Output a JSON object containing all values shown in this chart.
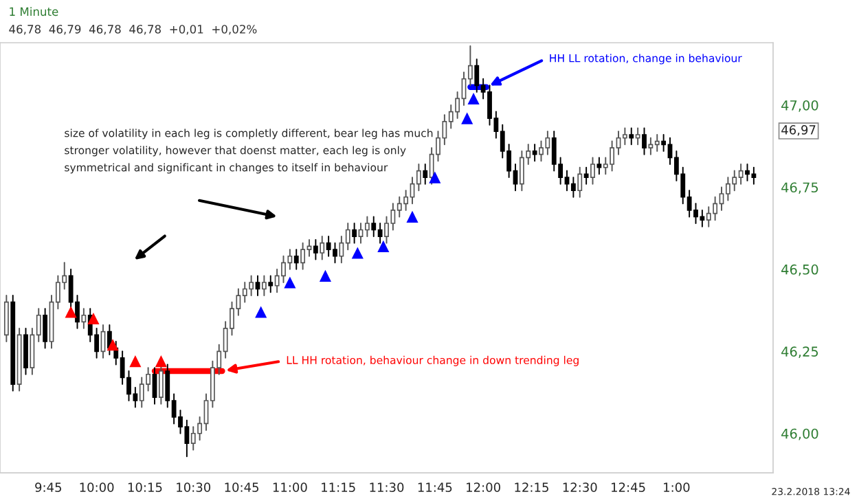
{
  "chart_data": {
    "type": "candlestick",
    "title": "1 Minute",
    "subtitle": "46,78  46,79  46,78  46,78  +0,01  +0,02%",
    "x": [
      "2018-02-23T09:32",
      "2018-02-23T09:34",
      "2018-02-23T09:36",
      "2018-02-23T09:38",
      "2018-02-23T09:40",
      "2018-02-23T09:42",
      "2018-02-23T09:44",
      "2018-02-23T09:46",
      "2018-02-23T09:48",
      "2018-02-23T09:50",
      "2018-02-23T09:52",
      "2018-02-23T09:54",
      "2018-02-23T09:56",
      "2018-02-23T09:58",
      "2018-02-23T10:00",
      "2018-02-23T10:02",
      "2018-02-23T10:04",
      "2018-02-23T10:06",
      "2018-02-23T10:08",
      "2018-02-23T10:10",
      "2018-02-23T10:12",
      "2018-02-23T10:14",
      "2018-02-23T10:16",
      "2018-02-23T10:18",
      "2018-02-23T10:20",
      "2018-02-23T10:22",
      "2018-02-23T10:24",
      "2018-02-23T10:26",
      "2018-02-23T10:28",
      "2018-02-23T10:30",
      "2018-02-23T10:32",
      "2018-02-23T10:34",
      "2018-02-23T10:36",
      "2018-02-23T10:38",
      "2018-02-23T10:40",
      "2018-02-23T10:42",
      "2018-02-23T10:44",
      "2018-02-23T10:46",
      "2018-02-23T10:48",
      "2018-02-23T10:50",
      "2018-02-23T10:52",
      "2018-02-23T10:54",
      "2018-02-23T10:56",
      "2018-02-23T10:58",
      "2018-02-23T11:00",
      "2018-02-23T11:02",
      "2018-02-23T11:04",
      "2018-02-23T11:06",
      "2018-02-23T11:08",
      "2018-02-23T11:10",
      "2018-02-23T11:12",
      "2018-02-23T11:14",
      "2018-02-23T11:16",
      "2018-02-23T11:18",
      "2018-02-23T11:20",
      "2018-02-23T11:22",
      "2018-02-23T11:24",
      "2018-02-23T11:26",
      "2018-02-23T11:28",
      "2018-02-23T11:30",
      "2018-02-23T11:32",
      "2018-02-23T11:34",
      "2018-02-23T11:36",
      "2018-02-23T11:38",
      "2018-02-23T11:40",
      "2018-02-23T11:42",
      "2018-02-23T11:44",
      "2018-02-23T11:46",
      "2018-02-23T11:48",
      "2018-02-23T11:50",
      "2018-02-23T11:52",
      "2018-02-23T11:54",
      "2018-02-23T11:56",
      "2018-02-23T11:58",
      "2018-02-23T12:00",
      "2018-02-23T12:02",
      "2018-02-23T12:04",
      "2018-02-23T12:06",
      "2018-02-23T12:08",
      "2018-02-23T12:10",
      "2018-02-23T12:12",
      "2018-02-23T12:14",
      "2018-02-23T12:16",
      "2018-02-23T12:18",
      "2018-02-23T12:20",
      "2018-02-23T12:22",
      "2018-02-23T12:24",
      "2018-02-23T12:26",
      "2018-02-23T12:28",
      "2018-02-23T12:30",
      "2018-02-23T12:32",
      "2018-02-23T12:34",
      "2018-02-23T12:36",
      "2018-02-23T12:38",
      "2018-02-23T12:40",
      "2018-02-23T12:42",
      "2018-02-23T12:44",
      "2018-02-23T12:46",
      "2018-02-23T12:48",
      "2018-02-23T12:50",
      "2018-02-23T12:52",
      "2018-02-23T12:54",
      "2018-02-23T12:56",
      "2018-02-23T12:58",
      "2018-02-23T13:00",
      "2018-02-23T13:02",
      "2018-02-23T13:04",
      "2018-02-23T13:06",
      "2018-02-23T13:08",
      "2018-02-23T13:10",
      "2018-02-23T13:12",
      "2018-02-23T13:14",
      "2018-02-23T13:16",
      "2018-02-23T13:18",
      "2018-02-23T13:20",
      "2018-02-23T13:22",
      "2018-02-23T13:24"
    ],
    "ohlc": [
      [
        46.3,
        46.42,
        46.28,
        46.4
      ],
      [
        46.4,
        46.42,
        46.13,
        46.15
      ],
      [
        46.15,
        46.32,
        46.13,
        46.3
      ],
      [
        46.3,
        46.32,
        46.18,
        46.2
      ],
      [
        46.2,
        46.32,
        46.18,
        46.3
      ],
      [
        46.3,
        46.38,
        46.28,
        46.36
      ],
      [
        46.36,
        46.38,
        46.26,
        46.28
      ],
      [
        46.28,
        46.42,
        46.26,
        46.4
      ],
      [
        46.4,
        46.48,
        46.38,
        46.46
      ],
      [
        46.46,
        46.52,
        46.44,
        46.48
      ],
      [
        46.48,
        46.5,
        46.38,
        46.4
      ],
      [
        46.4,
        46.42,
        46.32,
        46.34
      ],
      [
        46.34,
        46.38,
        46.32,
        46.36
      ],
      [
        46.36,
        46.38,
        46.28,
        46.3
      ],
      [
        46.3,
        46.32,
        46.23,
        46.25
      ],
      [
        46.25,
        46.33,
        46.23,
        46.31
      ],
      [
        46.31,
        46.33,
        46.24,
        46.26
      ],
      [
        46.26,
        46.28,
        46.21,
        46.23
      ],
      [
        46.23,
        46.25,
        46.15,
        46.17
      ],
      [
        46.17,
        46.19,
        46.1,
        46.12
      ],
      [
        46.12,
        46.14,
        46.08,
        46.1
      ],
      [
        46.1,
        46.17,
        46.08,
        46.15
      ],
      [
        46.15,
        46.2,
        46.13,
        46.18
      ],
      [
        46.18,
        46.2,
        46.09,
        46.11
      ],
      [
        46.11,
        46.21,
        46.09,
        46.19
      ],
      [
        46.19,
        46.21,
        46.08,
        46.1
      ],
      [
        46.1,
        46.12,
        46.03,
        46.05
      ],
      [
        46.05,
        46.07,
        46.0,
        46.02
      ],
      [
        46.02,
        46.04,
        45.93,
        45.97
      ],
      [
        45.97,
        46.02,
        45.95,
        46.0
      ],
      [
        46.0,
        46.05,
        45.98,
        46.03
      ],
      [
        46.03,
        46.12,
        46.01,
        46.1
      ],
      [
        46.1,
        46.22,
        46.08,
        46.2
      ],
      [
        46.2,
        46.27,
        46.18,
        46.25
      ],
      [
        46.25,
        46.34,
        46.23,
        46.32
      ],
      [
        46.32,
        46.4,
        46.3,
        46.38
      ],
      [
        46.38,
        46.44,
        46.36,
        46.42
      ],
      [
        46.42,
        46.46,
        46.4,
        46.44
      ],
      [
        46.44,
        46.48,
        46.42,
        46.46
      ],
      [
        46.46,
        46.48,
        46.42,
        46.44
      ],
      [
        46.44,
        46.48,
        46.42,
        46.46
      ],
      [
        46.46,
        46.48,
        46.43,
        46.45
      ],
      [
        46.45,
        46.5,
        46.43,
        46.48
      ],
      [
        46.48,
        46.54,
        46.46,
        46.52
      ],
      [
        46.52,
        46.56,
        46.5,
        46.54
      ],
      [
        46.54,
        46.56,
        46.5,
        46.52
      ],
      [
        46.52,
        46.58,
        46.5,
        46.56
      ],
      [
        46.56,
        46.59,
        46.54,
        46.57
      ],
      [
        46.57,
        46.59,
        46.53,
        46.55
      ],
      [
        46.55,
        46.6,
        46.53,
        46.58
      ],
      [
        46.58,
        46.6,
        46.54,
        46.56
      ],
      [
        46.56,
        46.58,
        46.52,
        46.54
      ],
      [
        46.54,
        46.6,
        46.52,
        46.58
      ],
      [
        46.58,
        46.64,
        46.56,
        46.62
      ],
      [
        46.62,
        46.64,
        46.58,
        46.6
      ],
      [
        46.6,
        46.64,
        46.58,
        46.62
      ],
      [
        46.62,
        46.66,
        46.6,
        46.64
      ],
      [
        46.64,
        46.66,
        46.6,
        46.62
      ],
      [
        46.62,
        46.64,
        46.58,
        46.6
      ],
      [
        46.6,
        46.66,
        46.58,
        46.64
      ],
      [
        46.64,
        46.7,
        46.62,
        46.68
      ],
      [
        46.68,
        46.72,
        46.66,
        46.7
      ],
      [
        46.7,
        46.74,
        46.68,
        46.72
      ],
      [
        46.72,
        46.78,
        46.7,
        46.76
      ],
      [
        46.76,
        46.82,
        46.74,
        46.8
      ],
      [
        46.8,
        46.82,
        46.76,
        46.78
      ],
      [
        46.78,
        46.87,
        46.76,
        46.85
      ],
      [
        46.85,
        46.92,
        46.83,
        46.9
      ],
      [
        46.9,
        46.97,
        46.88,
        46.95
      ],
      [
        46.95,
        47.0,
        46.93,
        46.98
      ],
      [
        46.98,
        47.04,
        46.96,
        47.02
      ],
      [
        47.02,
        47.1,
        47.0,
        47.08
      ],
      [
        47.08,
        47.18,
        47.06,
        47.12
      ],
      [
        47.12,
        47.14,
        47.04,
        47.06
      ],
      [
        47.06,
        47.08,
        47.02,
        47.04
      ],
      [
        47.04,
        47.06,
        46.94,
        46.96
      ],
      [
        46.96,
        46.98,
        46.9,
        46.92
      ],
      [
        46.92,
        46.94,
        46.84,
        46.86
      ],
      [
        46.86,
        46.88,
        46.78,
        46.8
      ],
      [
        46.8,
        46.82,
        46.74,
        46.76
      ],
      [
        46.76,
        46.86,
        46.74,
        46.84
      ],
      [
        46.84,
        46.88,
        46.82,
        46.86
      ],
      [
        46.86,
        46.88,
        46.83,
        46.85
      ],
      [
        46.85,
        46.89,
        46.83,
        46.87
      ],
      [
        46.87,
        46.92,
        46.85,
        46.9
      ],
      [
        46.9,
        46.92,
        46.8,
        46.82
      ],
      [
        46.82,
        46.84,
        46.76,
        46.78
      ],
      [
        46.78,
        46.8,
        46.74,
        46.76
      ],
      [
        46.76,
        46.78,
        46.72,
        46.74
      ],
      [
        46.74,
        46.81,
        46.72,
        46.79
      ],
      [
        46.79,
        46.81,
        46.76,
        46.78
      ],
      [
        46.78,
        46.84,
        46.76,
        46.82
      ],
      [
        46.82,
        46.84,
        46.79,
        46.81
      ],
      [
        46.81,
        46.84,
        46.79,
        46.82
      ],
      [
        46.82,
        46.89,
        46.8,
        46.87
      ],
      [
        46.87,
        46.92,
        46.85,
        46.9
      ],
      [
        46.9,
        46.93,
        46.88,
        46.91
      ],
      [
        46.91,
        46.93,
        46.88,
        46.9
      ],
      [
        46.9,
        46.93,
        46.88,
        46.91
      ],
      [
        46.91,
        46.93,
        46.85,
        46.87
      ],
      [
        46.87,
        46.9,
        46.85,
        46.88
      ],
      [
        46.88,
        46.91,
        46.86,
        46.89
      ],
      [
        46.89,
        46.91,
        46.86,
        46.88
      ],
      [
        46.88,
        46.9,
        46.82,
        46.84
      ],
      [
        46.84,
        46.86,
        46.77,
        46.79
      ],
      [
        46.79,
        46.81,
        46.7,
        46.72
      ],
      [
        46.72,
        46.74,
        46.66,
        46.68
      ],
      [
        46.68,
        46.7,
        46.64,
        46.66
      ],
      [
        46.66,
        46.68,
        46.63,
        46.65
      ],
      [
        46.65,
        46.69,
        46.63,
        46.67
      ],
      [
        46.67,
        46.72,
        46.65,
        46.7
      ],
      [
        46.7,
        46.75,
        46.68,
        46.73
      ],
      [
        46.73,
        46.78,
        46.71,
        46.76
      ],
      [
        46.76,
        46.8,
        46.74,
        46.78
      ],
      [
        46.78,
        46.82,
        46.76,
        46.8
      ],
      [
        46.8,
        46.82,
        46.77,
        46.79
      ],
      [
        46.79,
        46.81,
        46.76,
        46.78
      ]
    ],
    "series": [
      {
        "type": "scatter",
        "color": "#ff0000",
        "marker": "triangle",
        "x": [
          "2018-02-23T09:52",
          "2018-02-23T09:59",
          "2018-02-23T10:05",
          "2018-02-23T10:12",
          "2018-02-23T10:20"
        ],
        "values": [
          46.37,
          46.35,
          46.27,
          46.22,
          46.22
        ]
      },
      {
        "type": "scatter",
        "color": "#0000ff",
        "marker": "triangle",
        "x": [
          "2018-02-23T10:51",
          "2018-02-23T11:00",
          "2018-02-23T11:11",
          "2018-02-23T11:21",
          "2018-02-23T11:29",
          "2018-02-23T11:38",
          "2018-02-23T11:45",
          "2018-02-23T11:55",
          "2018-02-23T11:57"
        ],
        "values": [
          46.37,
          46.46,
          46.48,
          46.55,
          46.57,
          46.66,
          46.78,
          46.96,
          47.02
        ]
      },
      {
        "type": "line",
        "color": "#ff0000",
        "x": [
          "2018-02-23T10:18",
          "2018-02-23T10:39"
        ],
        "values": [
          46.19,
          46.19
        ]
      },
      {
        "type": "line",
        "color": "#0000ff",
        "x": [
          "2018-02-23T11:56",
          "2018-02-23T12:01"
        ],
        "values": [
          47.055,
          47.055
        ]
      }
    ],
    "annotations": [
      "size of volatility in each leg is completly different, bear leg has much",
      "stronger volatility, however that doenst matter, each leg is only",
      "symmetrical and significant in changes to itself in behaviour",
      "LL HH rotation, behaviour change in down trending leg",
      "HH LL rotation, change in behaviour",
      "46,97",
      "23.2.2018 13:24"
    ],
    "xlim": [
      "2018-02-23T09:30",
      "2018-02-23T13:30"
    ],
    "xticks": [
      {
        "value": "2018-02-23T09:45",
        "label": "9:45"
      },
      {
        "value": "2018-02-23T10:00",
        "label": "10:00"
      },
      {
        "value": "2018-02-23T10:15",
        "label": "10:15"
      },
      {
        "value": "2018-02-23T10:30",
        "label": "10:30"
      },
      {
        "value": "2018-02-23T10:45",
        "label": "10:45"
      },
      {
        "value": "2018-02-23T11:00",
        "label": "11:00"
      },
      {
        "value": "2018-02-23T11:15",
        "label": "11:15"
      },
      {
        "value": "2018-02-23T11:30",
        "label": "11:30"
      },
      {
        "value": "2018-02-23T11:45",
        "label": "11:45"
      },
      {
        "value": "2018-02-23T12:00",
        "label": "12:00"
      },
      {
        "value": "2018-02-23T12:15",
        "label": "12:15"
      },
      {
        "value": "2018-02-23T12:30",
        "label": "12:30"
      },
      {
        "value": "2018-02-23T12:45",
        "label": "12:45"
      },
      {
        "value": "2018-02-23T13:00",
        "label": "1:00"
      }
    ],
    "ylim": [
      45.88,
      47.19
    ],
    "yticks": [
      {
        "value": 46.0,
        "label": "46,00"
      },
      {
        "value": 46.25,
        "label": "46,25"
      },
      {
        "value": 46.5,
        "label": "46,50"
      },
      {
        "value": 46.75,
        "label": "46,75"
      },
      {
        "value": 47.0,
        "label": "47,00"
      }
    ],
    "grid": false,
    "legend": false
  }
}
